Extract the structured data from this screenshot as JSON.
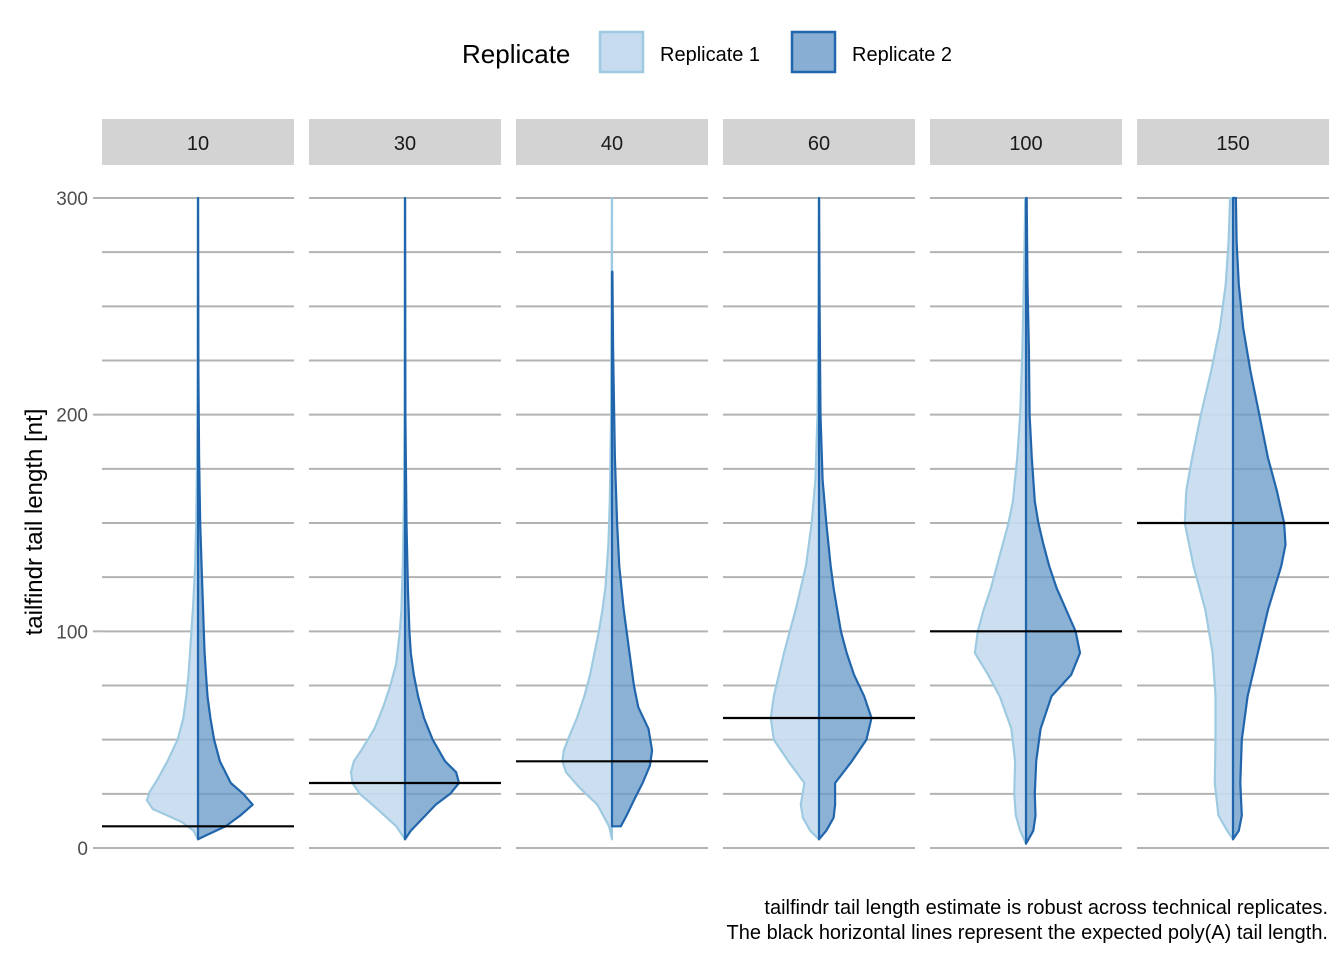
{
  "chart_data": {
    "type": "split-violin",
    "title": "",
    "xlabel": "",
    "ylabel": "tailfindr tail length [nt]",
    "ylim": [
      0,
      300
    ],
    "yticks": [
      0,
      100,
      200,
      300
    ],
    "grid": true,
    "legend": {
      "title": "Replicate",
      "placement": "top",
      "entries": [
        {
          "name": "Replicate 1",
          "fill": "#c6dbef",
          "stroke": "#9ecae1"
        },
        {
          "name": "Replicate 2",
          "fill": "#6a9bc8",
          "stroke": "#2166ac"
        }
      ]
    },
    "caption": [
      "tailfindr tail length estimate is robust across technical replicates.",
      "The black horizontal lines represent the expected poly(A) tail length."
    ],
    "density_unit": "relative width (0-1, max half-width of each facet)",
    "facets": [
      {
        "label": "10",
        "expected": 10,
        "series": [
          {
            "name": "Replicate 1",
            "profile": [
              [
                4,
                0
              ],
              [
                8,
                0.06
              ],
              [
                12,
                0.22
              ],
              [
                18,
                0.62
              ],
              [
                22,
                0.7
              ],
              [
                26,
                0.66
              ],
              [
                32,
                0.55
              ],
              [
                40,
                0.42
              ],
              [
                50,
                0.28
              ],
              [
                60,
                0.2
              ],
              [
                70,
                0.16
              ],
              [
                80,
                0.13
              ],
              [
                90,
                0.11
              ],
              [
                100,
                0.09
              ],
              [
                110,
                0.07
              ],
              [
                130,
                0.04
              ],
              [
                150,
                0.025
              ],
              [
                180,
                0.012
              ],
              [
                220,
                0.005
              ],
              [
                300,
                0.002
              ]
            ]
          },
          {
            "name": "Replicate 2",
            "profile": [
              [
                4,
                0
              ],
              [
                6,
                0.12
              ],
              [
                10,
                0.38
              ],
              [
                15,
                0.58
              ],
              [
                20,
                0.75
              ],
              [
                25,
                0.62
              ],
              [
                30,
                0.45
              ],
              [
                40,
                0.3
              ],
              [
                50,
                0.22
              ],
              [
                60,
                0.17
              ],
              [
                70,
                0.13
              ],
              [
                80,
                0.11
              ],
              [
                90,
                0.09
              ],
              [
                100,
                0.08
              ],
              [
                110,
                0.07
              ],
              [
                130,
                0.05
              ],
              [
                150,
                0.03
              ],
              [
                180,
                0.015
              ],
              [
                220,
                0.006
              ],
              [
                300,
                0.002
              ]
            ]
          }
        ]
      },
      {
        "label": "30",
        "expected": 30,
        "series": [
          {
            "name": "Replicate 1",
            "profile": [
              [
                4,
                0
              ],
              [
                10,
                0.12
              ],
              [
                18,
                0.38
              ],
              [
                25,
                0.62
              ],
              [
                30,
                0.72
              ],
              [
                35,
                0.74
              ],
              [
                40,
                0.7
              ],
              [
                45,
                0.6
              ],
              [
                55,
                0.42
              ],
              [
                65,
                0.3
              ],
              [
                75,
                0.2
              ],
              [
                85,
                0.12
              ],
              [
                100,
                0.07
              ],
              [
                110,
                0.05
              ],
              [
                130,
                0.03
              ],
              [
                160,
                0.015
              ],
              [
                200,
                0.006
              ],
              [
                300,
                0.002
              ]
            ]
          },
          {
            "name": "Replicate 2",
            "profile": [
              [
                4,
                0
              ],
              [
                8,
                0.08
              ],
              [
                15,
                0.28
              ],
              [
                20,
                0.42
              ],
              [
                25,
                0.62
              ],
              [
                30,
                0.74
              ],
              [
                35,
                0.7
              ],
              [
                40,
                0.55
              ],
              [
                50,
                0.38
              ],
              [
                60,
                0.26
              ],
              [
                70,
                0.18
              ],
              [
                80,
                0.12
              ],
              [
                90,
                0.08
              ],
              [
                100,
                0.06
              ],
              [
                120,
                0.04
              ],
              [
                150,
                0.02
              ],
              [
                200,
                0.006
              ],
              [
                300,
                0.002
              ]
            ]
          }
        ]
      },
      {
        "label": "40",
        "expected": 40,
        "series": [
          {
            "name": "Replicate 1",
            "profile": [
              [
                4,
                0
              ],
              [
                10,
                0.04
              ],
              [
                20,
                0.2
              ],
              [
                28,
                0.45
              ],
              [
                35,
                0.63
              ],
              [
                40,
                0.68
              ],
              [
                45,
                0.66
              ],
              [
                52,
                0.58
              ],
              [
                60,
                0.48
              ],
              [
                70,
                0.38
              ],
              [
                80,
                0.3
              ],
              [
                90,
                0.24
              ],
              [
                100,
                0.18
              ],
              [
                110,
                0.13
              ],
              [
                120,
                0.09
              ],
              [
                140,
                0.05
              ],
              [
                160,
                0.03
              ],
              [
                200,
                0.012
              ],
              [
                250,
                0.005
              ],
              [
                300,
                0.002
              ]
            ]
          },
          {
            "name": "Replicate 2",
            "profile": [
              [
                10,
                0.12
              ],
              [
                15,
                0.2
              ],
              [
                22,
                0.3
              ],
              [
                30,
                0.42
              ],
              [
                38,
                0.52
              ],
              [
                45,
                0.55
              ],
              [
                55,
                0.5
              ],
              [
                65,
                0.36
              ],
              [
                75,
                0.3
              ],
              [
                90,
                0.24
              ],
              [
                100,
                0.2
              ],
              [
                110,
                0.16
              ],
              [
                130,
                0.1
              ],
              [
                150,
                0.07
              ],
              [
                180,
                0.04
              ],
              [
                230,
                0.015
              ],
              [
                266,
                0.005
              ]
            ]
          }
        ]
      },
      {
        "label": "60",
        "expected": 60,
        "series": [
          {
            "name": "Replicate 1",
            "profile": [
              [
                4,
                0
              ],
              [
                8,
                0.12
              ],
              [
                14,
                0.22
              ],
              [
                20,
                0.25
              ],
              [
                30,
                0.2
              ],
              [
                40,
                0.42
              ],
              [
                50,
                0.62
              ],
              [
                60,
                0.66
              ],
              [
                70,
                0.62
              ],
              [
                80,
                0.55
              ],
              [
                90,
                0.48
              ],
              [
                100,
                0.4
              ],
              [
                110,
                0.32
              ],
              [
                120,
                0.25
              ],
              [
                130,
                0.18
              ],
              [
                150,
                0.1
              ],
              [
                170,
                0.05
              ],
              [
                200,
                0.02
              ],
              [
                250,
                0.008
              ],
              [
                300,
                0.002
              ]
            ]
          },
          {
            "name": "Replicate 2",
            "profile": [
              [
                4,
                0
              ],
              [
                8,
                0.1
              ],
              [
                14,
                0.2
              ],
              [
                20,
                0.22
              ],
              [
                30,
                0.22
              ],
              [
                40,
                0.45
              ],
              [
                50,
                0.65
              ],
              [
                60,
                0.72
              ],
              [
                70,
                0.62
              ],
              [
                80,
                0.48
              ],
              [
                90,
                0.38
              ],
              [
                100,
                0.3
              ],
              [
                110,
                0.25
              ],
              [
                120,
                0.2
              ],
              [
                130,
                0.16
              ],
              [
                150,
                0.1
              ],
              [
                170,
                0.05
              ],
              [
                200,
                0.02
              ],
              [
                250,
                0.008
              ],
              [
                300,
                0.002
              ]
            ]
          }
        ]
      },
      {
        "label": "100",
        "expected": 100,
        "series": [
          {
            "name": "Replicate 1",
            "profile": [
              [
                2,
                0
              ],
              [
                8,
                0.08
              ],
              [
                15,
                0.14
              ],
              [
                25,
                0.16
              ],
              [
                40,
                0.15
              ],
              [
                55,
                0.2
              ],
              [
                70,
                0.36
              ],
              [
                80,
                0.52
              ],
              [
                90,
                0.7
              ],
              [
                100,
                0.66
              ],
              [
                110,
                0.58
              ],
              [
                120,
                0.48
              ],
              [
                130,
                0.4
              ],
              [
                140,
                0.32
              ],
              [
                150,
                0.24
              ],
              [
                160,
                0.18
              ],
              [
                180,
                0.12
              ],
              [
                200,
                0.08
              ],
              [
                230,
                0.05
              ],
              [
                260,
                0.03
              ],
              [
                300,
                0.01
              ]
            ]
          },
          {
            "name": "Replicate 2",
            "profile": [
              [
                2,
                0
              ],
              [
                8,
                0.1
              ],
              [
                15,
                0.13
              ],
              [
                25,
                0.12
              ],
              [
                40,
                0.14
              ],
              [
                55,
                0.2
              ],
              [
                70,
                0.35
              ],
              [
                80,
                0.62
              ],
              [
                90,
                0.74
              ],
              [
                100,
                0.68
              ],
              [
                110,
                0.55
              ],
              [
                120,
                0.42
              ],
              [
                130,
                0.32
              ],
              [
                140,
                0.24
              ],
              [
                150,
                0.17
              ],
              [
                160,
                0.12
              ],
              [
                180,
                0.08
              ],
              [
                200,
                0.05
              ],
              [
                230,
                0.04
              ],
              [
                260,
                0.02
              ],
              [
                300,
                0.01
              ]
            ]
          }
        ]
      },
      {
        "label": "150",
        "expected": 150,
        "series": [
          {
            "name": "Replicate 1",
            "profile": [
              [
                4,
                0
              ],
              [
                8,
                0.08
              ],
              [
                15,
                0.2
              ],
              [
                30,
                0.25
              ],
              [
                50,
                0.24
              ],
              [
                70,
                0.24
              ],
              [
                90,
                0.28
              ],
              [
                110,
                0.38
              ],
              [
                130,
                0.54
              ],
              [
                150,
                0.66
              ],
              [
                165,
                0.64
              ],
              [
                180,
                0.56
              ],
              [
                200,
                0.44
              ],
              [
                220,
                0.3
              ],
              [
                240,
                0.18
              ],
              [
                260,
                0.1
              ],
              [
                280,
                0.06
              ],
              [
                300,
                0.04
              ]
            ]
          },
          {
            "name": "Replicate 2",
            "profile": [
              [
                4,
                0
              ],
              [
                8,
                0.08
              ],
              [
                15,
                0.12
              ],
              [
                30,
                0.1
              ],
              [
                50,
                0.12
              ],
              [
                70,
                0.2
              ],
              [
                90,
                0.34
              ],
              [
                110,
                0.48
              ],
              [
                130,
                0.66
              ],
              [
                140,
                0.72
              ],
              [
                150,
                0.7
              ],
              [
                165,
                0.6
              ],
              [
                180,
                0.48
              ],
              [
                200,
                0.36
              ],
              [
                220,
                0.24
              ],
              [
                240,
                0.14
              ],
              [
                260,
                0.08
              ],
              [
                280,
                0.05
              ],
              [
                300,
                0.04
              ]
            ]
          }
        ]
      }
    ]
  }
}
